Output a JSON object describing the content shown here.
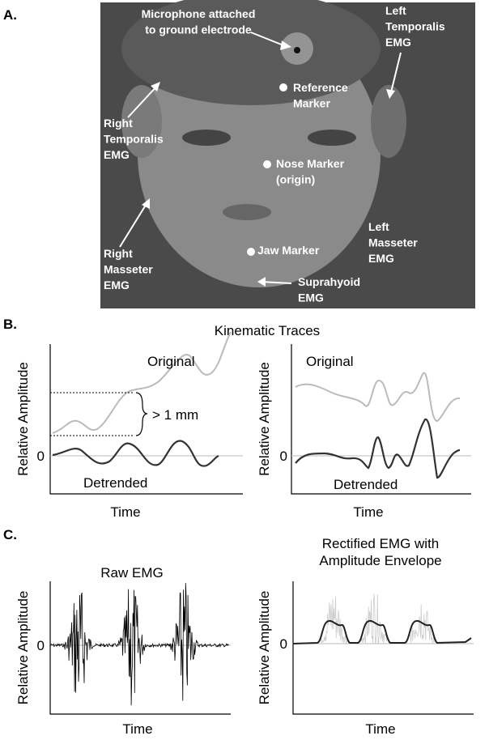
{
  "panel_a": {
    "label": "A.",
    "annotations": [
      [
        "Microphone attached",
        "to ground electrode"
      ],
      [
        "Left",
        "Temporalis",
        "EMG"
      ],
      [
        "Reference",
        "Marker"
      ],
      [
        "Right",
        "Temporalis",
        "EMG"
      ],
      [
        "Nose Marker",
        "(origin)"
      ],
      [
        "Left",
        "Masseter",
        "EMG"
      ],
      [
        "Right",
        "Masseter",
        "EMG"
      ],
      [
        "Jaw Marker"
      ],
      [
        "Suprahyoid",
        "EMG"
      ]
    ]
  },
  "panel_b": {
    "label": "B.",
    "title": "Kinematic Traces",
    "plots": [
      {
        "y_label": "Relative Amplitude",
        "x_label": "Time",
        "zero": "0",
        "original": "Original",
        "detrended": "Detrended",
        "bracket": "> 1 mm"
      },
      {
        "y_label": "Relative Amplitude",
        "x_label": "Time",
        "zero": "0",
        "original": "Original",
        "detrended": "Detrended"
      }
    ]
  },
  "panel_c": {
    "label": "C.",
    "plots": [
      {
        "title": [
          "Raw EMG"
        ],
        "y_label": "Relative Amplitude",
        "x_label": "Time",
        "zero": "0"
      },
      {
        "title": [
          "Rectified EMG with",
          "Amplitude Envelope"
        ],
        "y_label": "Relative Amplitude",
        "x_label": "Time",
        "zero": "0"
      }
    ]
  }
}
